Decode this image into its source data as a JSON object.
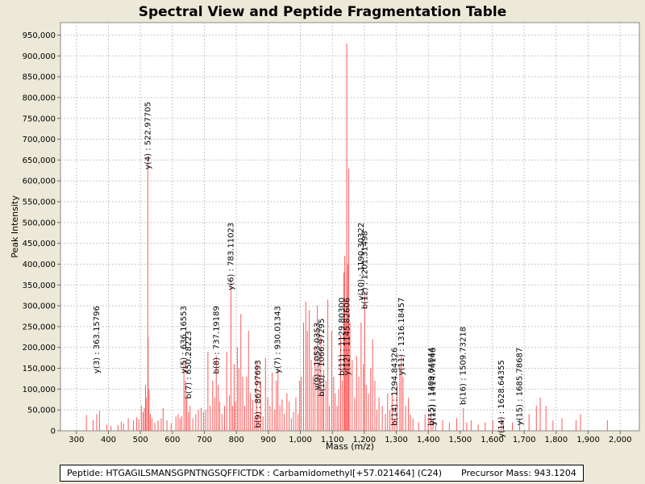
{
  "chart_data": {
    "type": "bar",
    "title": "Spectral View and Peptide Fragmentation Table",
    "xlabel": "Mass (m/z)",
    "ylabel": "Peak Intensity",
    "xlim": [
      250,
      2060
    ],
    "ylim": [
      0,
      980000
    ],
    "x_ticks": [
      {
        "value": 300,
        "label": "300"
      },
      {
        "value": 400,
        "label": "400"
      },
      {
        "value": 500,
        "label": "500"
      },
      {
        "value": 600,
        "label": "600"
      },
      {
        "value": 700,
        "label": "700"
      },
      {
        "value": 800,
        "label": "800"
      },
      {
        "value": 900,
        "label": "900"
      },
      {
        "value": 1000,
        "label": "1,000"
      },
      {
        "value": 1100,
        "label": "1,100"
      },
      {
        "value": 1200,
        "label": "1,200"
      },
      {
        "value": 1300,
        "label": "1,300"
      },
      {
        "value": 1400,
        "label": "1,400"
      },
      {
        "value": 1500,
        "label": "1,500"
      },
      {
        "value": 1600,
        "label": "1,600"
      },
      {
        "value": 1700,
        "label": "1,700"
      },
      {
        "value": 1800,
        "label": "1,800"
      },
      {
        "value": 1900,
        "label": "1,900"
      },
      {
        "value": 2000,
        "label": "2,000"
      }
    ],
    "y_ticks": [
      {
        "value": 0,
        "label": "0"
      },
      {
        "value": 50000,
        "label": "50,000"
      },
      {
        "value": 100000,
        "label": "100,000"
      },
      {
        "value": 150000,
        "label": "150,000"
      },
      {
        "value": 200000,
        "label": "200,000"
      },
      {
        "value": 250000,
        "label": "250,000"
      },
      {
        "value": 300000,
        "label": "300,000"
      },
      {
        "value": 350000,
        "label": "350,000"
      },
      {
        "value": 400000,
        "label": "400,000"
      },
      {
        "value": 450000,
        "label": "450,000"
      },
      {
        "value": 500000,
        "label": "500,000"
      },
      {
        "value": 550000,
        "label": "550,000"
      },
      {
        "value": 600000,
        "label": "600,000"
      },
      {
        "value": 650000,
        "label": "650,000"
      },
      {
        "value": 700000,
        "label": "700,000"
      },
      {
        "value": 750000,
        "label": "750,000"
      },
      {
        "value": 800000,
        "label": "800,000"
      },
      {
        "value": 850000,
        "label": "850,000"
      },
      {
        "value": 900000,
        "label": "900,000"
      },
      {
        "value": 950000,
        "label": "950,000"
      }
    ],
    "grid": true,
    "peak_color": "#ff5a5a",
    "peaks": [
      [
        331,
        38000
      ],
      [
        352,
        25000
      ],
      [
        363.16,
        40000
      ],
      [
        372,
        48000
      ],
      [
        395,
        15000
      ],
      [
        408,
        12000
      ],
      [
        430,
        14000
      ],
      [
        440,
        22000
      ],
      [
        447,
        18000
      ],
      [
        462,
        30000
      ],
      [
        478,
        25000
      ],
      [
        488,
        32000
      ],
      [
        495,
        28000
      ],
      [
        503,
        60000
      ],
      [
        508,
        45000
      ],
      [
        512,
        55000
      ],
      [
        516,
        110000
      ],
      [
        518,
        80000
      ],
      [
        522.98,
        660000
      ],
      [
        524,
        225000
      ],
      [
        527,
        100000
      ],
      [
        531,
        40000
      ],
      [
        536,
        30000
      ],
      [
        545,
        20000
      ],
      [
        555,
        25000
      ],
      [
        565,
        30000
      ],
      [
        571,
        55000
      ],
      [
        583,
        25000
      ],
      [
        596,
        18000
      ],
      [
        611,
        35000
      ],
      [
        618,
        40000
      ],
      [
        624,
        30000
      ],
      [
        629,
        35000
      ],
      [
        636,
        170000
      ],
      [
        641,
        120000
      ],
      [
        645,
        80000
      ],
      [
        650.28,
        45000
      ],
      [
        655,
        60000
      ],
      [
        664,
        30000
      ],
      [
        673,
        40000
      ],
      [
        681,
        50000
      ],
      [
        690,
        55000
      ],
      [
        697,
        45000
      ],
      [
        704,
        50000
      ],
      [
        711,
        190000
      ],
      [
        718,
        60000
      ],
      [
        726,
        120000
      ],
      [
        732,
        80000
      ],
      [
        737.19,
        180000
      ],
      [
        743,
        110000
      ],
      [
        748,
        70000
      ],
      [
        755,
        40000
      ],
      [
        763,
        60000
      ],
      [
        770,
        190000
      ],
      [
        778,
        85000
      ],
      [
        783.11,
        360000
      ],
      [
        788,
        60000
      ],
      [
        793,
        160000
      ],
      [
        797,
        70000
      ],
      [
        803,
        200000
      ],
      [
        808,
        150000
      ],
      [
        814,
        280000
      ],
      [
        820,
        130000
      ],
      [
        826,
        60000
      ],
      [
        832,
        130000
      ],
      [
        838,
        240000
      ],
      [
        844,
        90000
      ],
      [
        851,
        75000
      ],
      [
        857,
        30000
      ],
      [
        863,
        165000
      ],
      [
        868,
        40000
      ],
      [
        876,
        120000
      ],
      [
        883,
        35000
      ],
      [
        891,
        175000
      ],
      [
        898,
        80000
      ],
      [
        905,
        60000
      ],
      [
        912,
        140000
      ],
      [
        920,
        50000
      ],
      [
        925,
        120000
      ],
      [
        930.01,
        150000
      ],
      [
        936,
        60000
      ],
      [
        943,
        75000
      ],
      [
        950,
        40000
      ],
      [
        958,
        90000
      ],
      [
        965,
        70000
      ],
      [
        972,
        30000
      ],
      [
        979,
        45000
      ],
      [
        986,
        80000
      ],
      [
        993,
        40000
      ],
      [
        998,
        120000
      ],
      [
        1003,
        130000
      ],
      [
        1010,
        260000
      ],
      [
        1017,
        310000
      ],
      [
        1022,
        240000
      ],
      [
        1028,
        290000
      ],
      [
        1034,
        170000
      ],
      [
        1040,
        130000
      ],
      [
        1046,
        200000
      ],
      [
        1053,
        300000
      ],
      [
        1058,
        160000
      ],
      [
        1064,
        230000
      ],
      [
        1069,
        100000
      ],
      [
        1073,
        140000
      ],
      [
        1080,
        120000
      ],
      [
        1086,
        315000
      ],
      [
        1091,
        60000
      ],
      [
        1098,
        240000
      ],
      [
        1104,
        130000
      ],
      [
        1109,
        90000
      ],
      [
        1115,
        60000
      ],
      [
        1120,
        100000
      ],
      [
        1126,
        230000
      ],
      [
        1131,
        120000
      ],
      [
        1136,
        380000
      ],
      [
        1139,
        420000
      ],
      [
        1142,
        260000
      ],
      [
        1145,
        930000
      ],
      [
        1148,
        400000
      ],
      [
        1151,
        630000
      ],
      [
        1155,
        260000
      ],
      [
        1162,
        170000
      ],
      [
        1170,
        80000
      ],
      [
        1176,
        180000
      ],
      [
        1183,
        130000
      ],
      [
        1190,
        260000
      ],
      [
        1197,
        160000
      ],
      [
        1201.3,
        330000
      ],
      [
        1206,
        110000
      ],
      [
        1213,
        90000
      ],
      [
        1220,
        150000
      ],
      [
        1226,
        220000
      ],
      [
        1233,
        120000
      ],
      [
        1239,
        50000
      ],
      [
        1246,
        80000
      ],
      [
        1256,
        60000
      ],
      [
        1266,
        40000
      ],
      [
        1273,
        90000
      ],
      [
        1280,
        50000
      ],
      [
        1287,
        90000
      ],
      [
        1294,
        30000
      ],
      [
        1302,
        110000
      ],
      [
        1311,
        160000
      ],
      [
        1316,
        180000
      ],
      [
        1321,
        130000
      ],
      [
        1329,
        60000
      ],
      [
        1338,
        80000
      ],
      [
        1344,
        40000
      ],
      [
        1352,
        30000
      ],
      [
        1370,
        20000
      ],
      [
        1390,
        40000
      ],
      [
        1400,
        30000
      ],
      [
        1409,
        45000
      ],
      [
        1415,
        30000
      ],
      [
        1423,
        20000
      ],
      [
        1445,
        25000
      ],
      [
        1466,
        20000
      ],
      [
        1489,
        30000
      ],
      [
        1509.73,
        55000
      ],
      [
        1520,
        20000
      ],
      [
        1534,
        25000
      ],
      [
        1556,
        15000
      ],
      [
        1578,
        20000
      ],
      [
        1602,
        25000
      ],
      [
        1628.64,
        30000
      ],
      [
        1635,
        25000
      ],
      [
        1663,
        20000
      ],
      [
        1685.79,
        30000
      ],
      [
        1715,
        40000
      ],
      [
        1738,
        60000
      ],
      [
        1750,
        80000
      ],
      [
        1768,
        60000
      ],
      [
        1790,
        25000
      ],
      [
        1818,
        30000
      ],
      [
        1862,
        25000
      ],
      [
        1876,
        40000
      ],
      [
        1960,
        25000
      ]
    ],
    "annotations": [
      {
        "label": "y(3) : 363.15796",
        "mass": 363.16,
        "top": 300000
      },
      {
        "label": "y(4) : 522.97705",
        "mass": 522.98,
        "top": 790000
      },
      {
        "label": "y(5) : 636.16553",
        "mass": 636.17,
        "top": 300000
      },
      {
        "label": "b(7) : 650.28223",
        "mass": 650.28,
        "top": 240000
      },
      {
        "label": "b(8) : 737.19189",
        "mass": 737.19,
        "top": 300000
      },
      {
        "label": "y(6) : 783.11023",
        "mass": 783.11,
        "top": 500000
      },
      {
        "label": "b(9) : 867.97693",
        "mass": 867.98,
        "top": 170000
      },
      {
        "label": "y(7) : 930.01343",
        "mass": 930.01,
        "top": 300000
      },
      {
        "label": "y(9) : 1053.0353",
        "mass": 1053.04,
        "top": 260000
      },
      {
        "label": "b(10) : 1066.97295",
        "mass": 1066.97,
        "top": 270000
      },
      {
        "label": "b(11) : 1129.80300",
        "mass": 1129.8,
        "top": 320000
      },
      {
        "label": "y(12) : 1145.82606",
        "mass": 1145.83,
        "top": 320000
      },
      {
        "label": "y(10) : 1190.30322",
        "mass": 1190.3,
        "top": 500000
      },
      {
        "label": "b(12) : 1201.31498",
        "mass": 1201.31,
        "top": 480000
      },
      {
        "label": "b(14) : 1294.84326",
        "mass": 1294.84,
        "top": 200000
      },
      {
        "label": "y(11) : 1316.18457",
        "mass": 1316.18,
        "top": 320000
      },
      {
        "label": "b(15) : 1409.04044",
        "mass": 1409.04,
        "top": 200000
      },
      {
        "label": "y(12) : 1414.74146",
        "mass": 1414.74,
        "top": 200000
      },
      {
        "label": "b(16) : 1509.73218",
        "mass": 1509.73,
        "top": 250000
      },
      {
        "label": "y(14) : 1628.64355",
        "mass": 1628.64,
        "top": 170000
      },
      {
        "label": "y(15) : 1685.78687",
        "mass": 1685.79,
        "top": 200000
      }
    ]
  },
  "info": {
    "peptide_text": "Peptide: HTGAGILSMANSGPNTNGSQFFICTDK : Carbamidomethyl[+57.021464] (C24)",
    "precursor_text": "Precursor Mass: 943.1204"
  }
}
